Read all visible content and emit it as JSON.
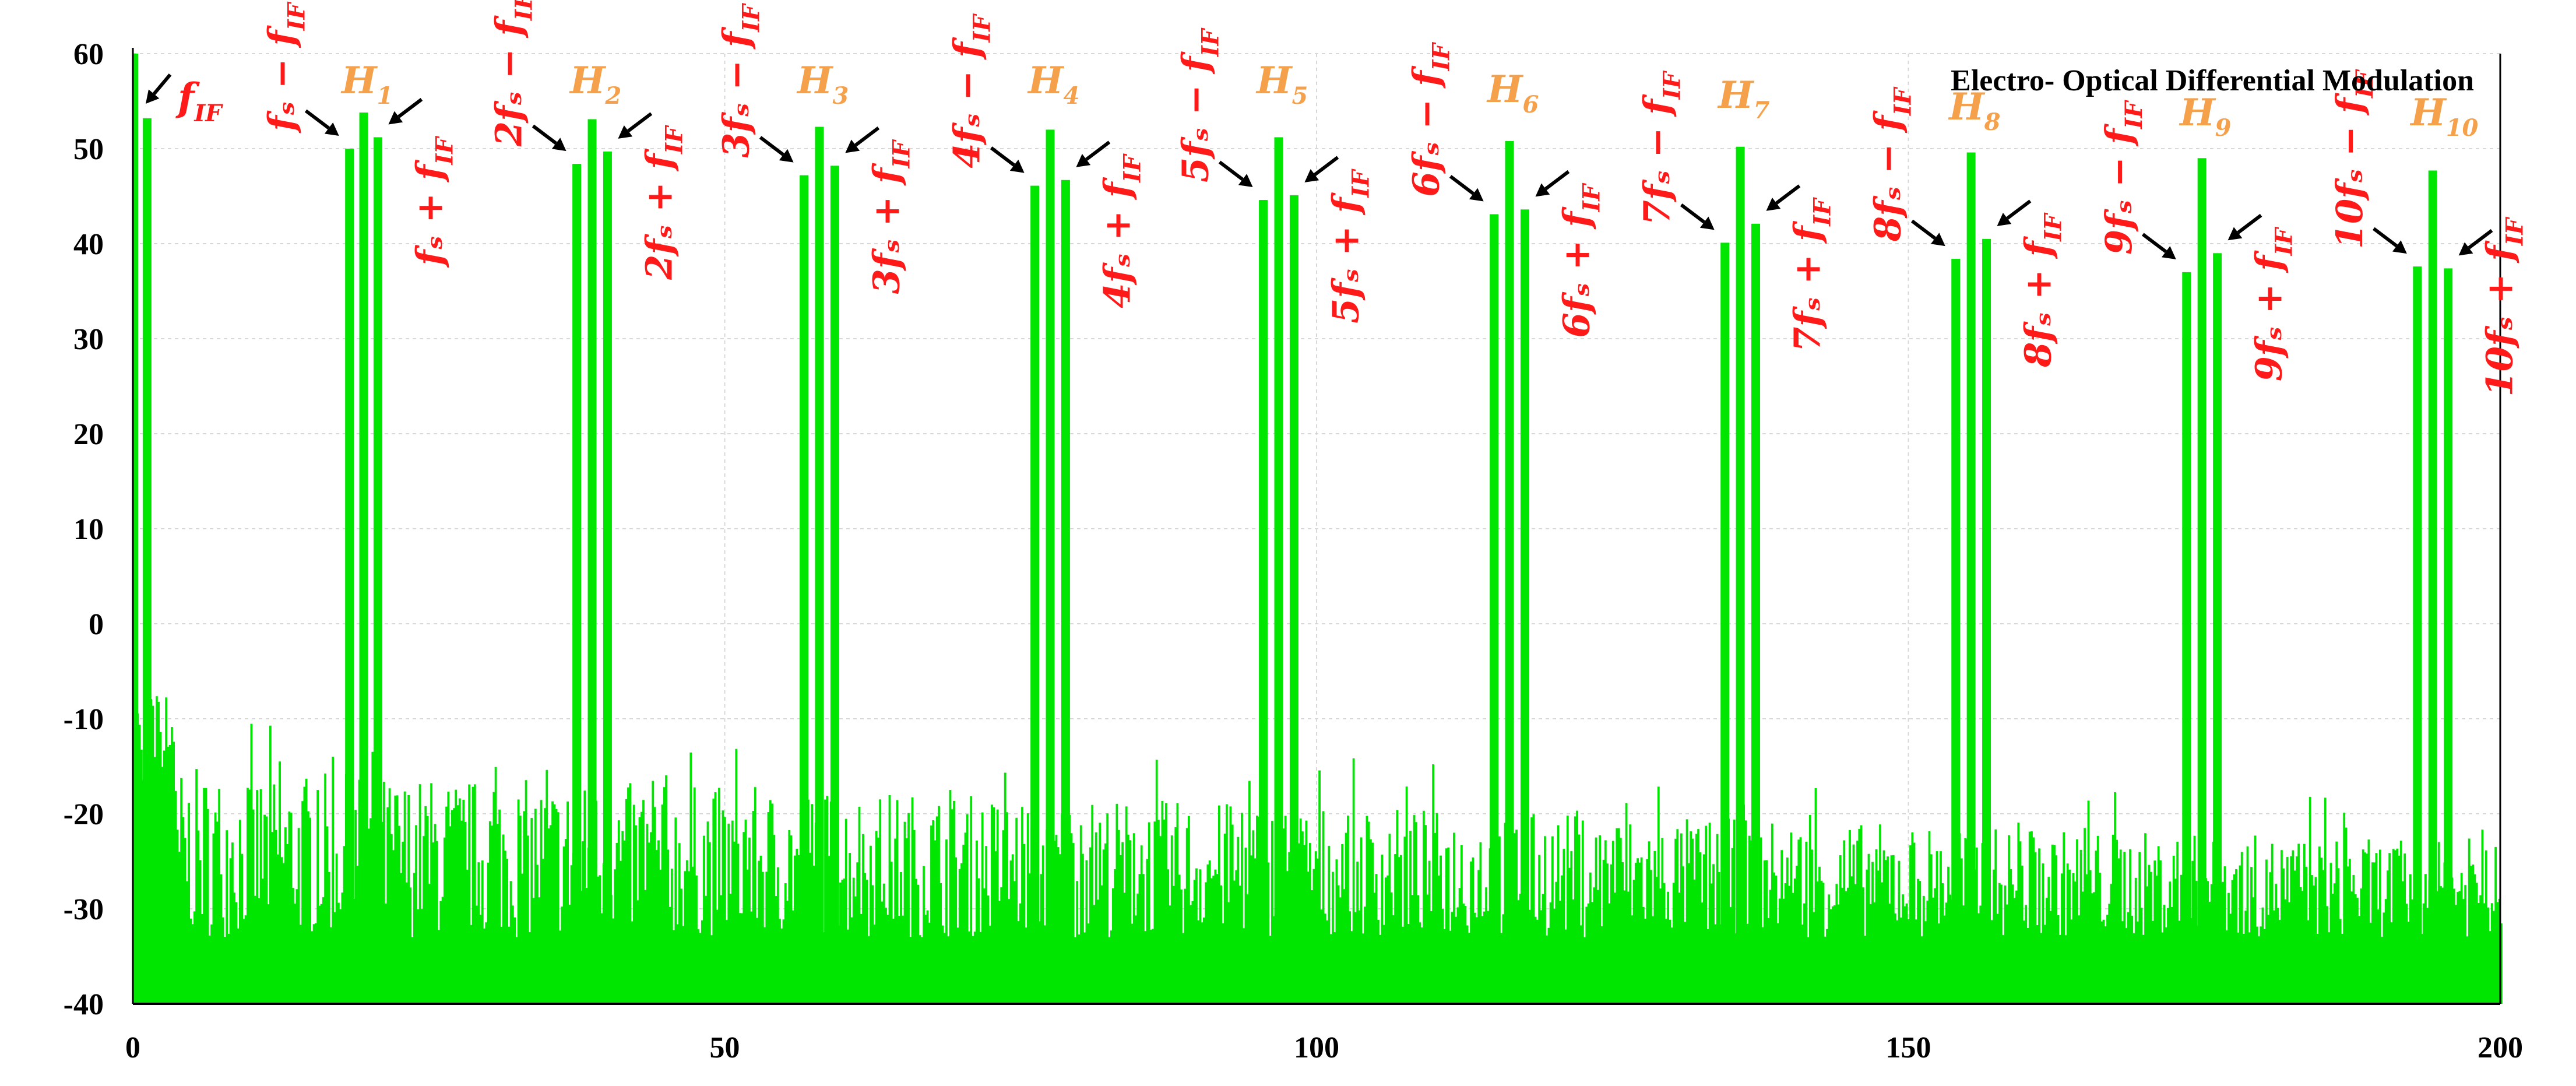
{
  "chart_data": {
    "type": "bar",
    "title": "Electro- Optical Differential Modulation",
    "xlabel": "",
    "ylabel": "",
    "xlim": [
      0,
      200
    ],
    "ylim": [
      -40,
      60
    ],
    "xticks": [
      0,
      50,
      100,
      150,
      200
    ],
    "yticks": [
      -40,
      -30,
      -20,
      -10,
      0,
      10,
      20,
      30,
      40,
      50,
      60
    ],
    "grid": true,
    "bar_color": "#00e600",
    "label_color": "#ff1a1a",
    "harmonic_label_color": "#f5a04a",
    "noise_floor_range": [
      -33,
      -15
    ],
    "peaks": [
      {
        "x": 1.2,
        "y": 53.2
      },
      {
        "x": 18.3,
        "y": 50.0
      },
      {
        "x": 19.5,
        "y": 53.8
      },
      {
        "x": 20.7,
        "y": 51.2
      },
      {
        "x": 37.5,
        "y": 48.4
      },
      {
        "x": 38.8,
        "y": 53.1
      },
      {
        "x": 40.1,
        "y": 49.7
      },
      {
        "x": 56.7,
        "y": 47.2
      },
      {
        "x": 58.0,
        "y": 52.3
      },
      {
        "x": 59.3,
        "y": 48.2
      },
      {
        "x": 76.2,
        "y": 46.1
      },
      {
        "x": 77.5,
        "y": 52.0
      },
      {
        "x": 78.8,
        "y": 46.7
      },
      {
        "x": 95.5,
        "y": 44.6
      },
      {
        "x": 96.8,
        "y": 51.2
      },
      {
        "x": 98.1,
        "y": 45.1
      },
      {
        "x": 115.0,
        "y": 43.1
      },
      {
        "x": 116.3,
        "y": 50.8
      },
      {
        "x": 117.6,
        "y": 43.6
      },
      {
        "x": 134.5,
        "y": 40.1
      },
      {
        "x": 135.8,
        "y": 50.2
      },
      {
        "x": 137.1,
        "y": 42.1
      },
      {
        "x": 154.0,
        "y": 38.4
      },
      {
        "x": 155.3,
        "y": 49.6
      },
      {
        "x": 156.6,
        "y": 40.5
      },
      {
        "x": 173.5,
        "y": 37.0
      },
      {
        "x": 174.8,
        "y": 49.0
      },
      {
        "x": 176.1,
        "y": 39.0
      },
      {
        "x": 193.0,
        "y": 37.6
      },
      {
        "x": 194.3,
        "y": 47.7
      },
      {
        "x": 195.6,
        "y": 37.4
      }
    ],
    "annotations": [
      {
        "kind": "fif",
        "text": "f",
        "sub": "IF"
      },
      {
        "kind": "harmonic",
        "text": "H",
        "sub": "1"
      },
      {
        "kind": "harmonic",
        "text": "H",
        "sub": "2"
      },
      {
        "kind": "harmonic",
        "text": "H",
        "sub": "3"
      },
      {
        "kind": "harmonic",
        "text": "H",
        "sub": "4"
      },
      {
        "kind": "harmonic",
        "text": "H",
        "sub": "5"
      },
      {
        "kind": "harmonic",
        "text": "H",
        "sub": "6"
      },
      {
        "kind": "harmonic",
        "text": "H",
        "sub": "7"
      },
      {
        "kind": "harmonic",
        "text": "H",
        "sub": "8"
      },
      {
        "kind": "harmonic",
        "text": "H",
        "sub": "9"
      },
      {
        "kind": "harmonic",
        "text": "H",
        "sub": "10"
      },
      {
        "kind": "lower",
        "coef": "",
        "text": "fₛ − f",
        "sub": "IF"
      },
      {
        "kind": "upper",
        "coef": "",
        "text": "fₛ + f",
        "sub": "IF"
      },
      {
        "kind": "lower",
        "coef": "2",
        "text": "2fₛ − f",
        "sub": "IF"
      },
      {
        "kind": "upper",
        "coef": "2",
        "text": "2fₛ + f",
        "sub": "IF"
      },
      {
        "kind": "lower",
        "coef": "3",
        "text": "3fₛ − f",
        "sub": "IF"
      },
      {
        "kind": "upper",
        "coef": "3",
        "text": "3fₛ + f",
        "sub": "IF"
      },
      {
        "kind": "lower",
        "coef": "4",
        "text": "4fₛ − f",
        "sub": "IF"
      },
      {
        "kind": "upper",
        "coef": "4",
        "text": "4fₛ + f",
        "sub": "IF"
      },
      {
        "kind": "lower",
        "coef": "5",
        "text": "5fₛ − f",
        "sub": "IF"
      },
      {
        "kind": "upper",
        "coef": "5",
        "text": "5fₛ + f",
        "sub": "IF"
      },
      {
        "kind": "lower",
        "coef": "6",
        "text": "6fₛ − f",
        "sub": "IF"
      },
      {
        "kind": "upper",
        "coef": "6",
        "text": "6fₛ + f",
        "sub": "IF"
      },
      {
        "kind": "lower",
        "coef": "7",
        "text": "7fₛ − f",
        "sub": "IF"
      },
      {
        "kind": "upper",
        "coef": "7",
        "text": "7fₛ + f",
        "sub": "IF"
      },
      {
        "kind": "lower",
        "coef": "8",
        "text": "8fₛ − f",
        "sub": "IF"
      },
      {
        "kind": "upper",
        "coef": "8",
        "text": "8fₛ + f",
        "sub": "IF"
      },
      {
        "kind": "lower",
        "coef": "9",
        "text": "9fₛ − f",
        "sub": "IF"
      },
      {
        "kind": "upper",
        "coef": "9",
        "text": "9fₛ + f",
        "sub": "IF"
      },
      {
        "kind": "lower",
        "coef": "10",
        "text": "10fₛ − f",
        "sub": "IF"
      },
      {
        "kind": "upper",
        "coef": "10",
        "text": "10fₛ + f",
        "sub": "IF"
      }
    ]
  }
}
